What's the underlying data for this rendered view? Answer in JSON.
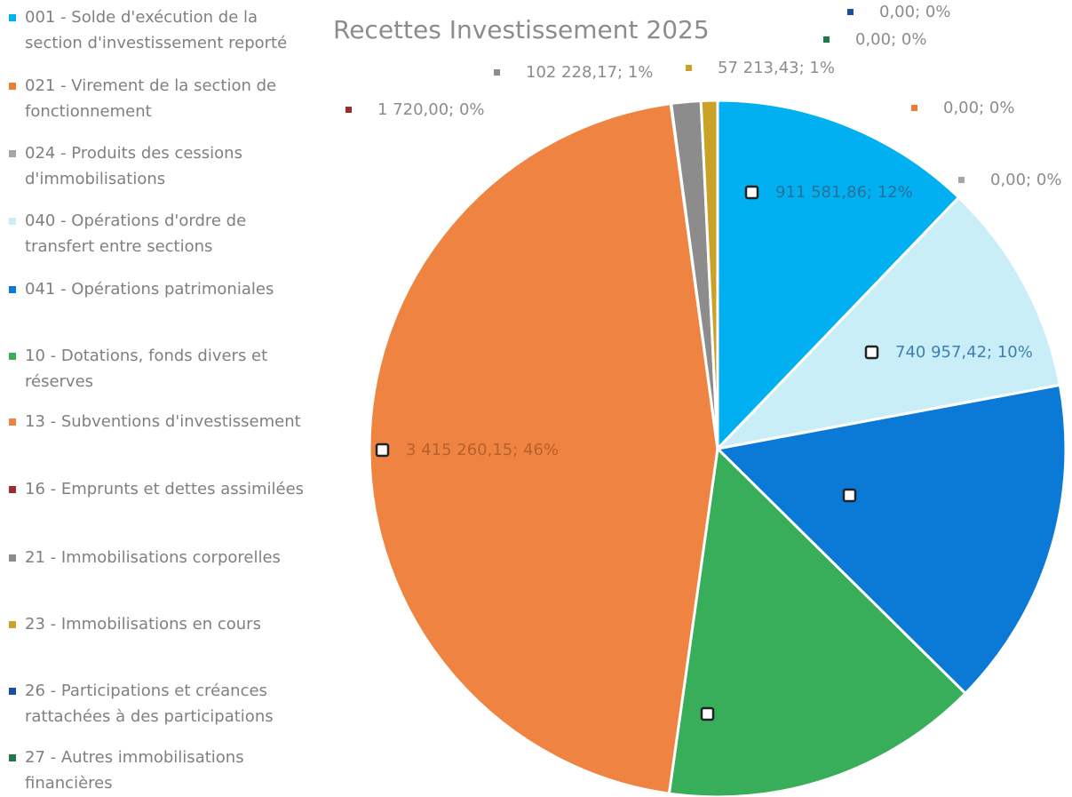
{
  "chart_data": {
    "type": "pie",
    "title": "Recettes Investissement 2025",
    "categories": [
      "001 - Solde d'exécution de la section d'investissement reporté",
      "021 - Virement de la section de fonctionnement",
      "024 - Produits des cessions d'immobilisations",
      "040 - Opérations d'ordre de transfert entre sections",
      "041 - Opérations patrimoniales",
      "10 - Dotations, fonds divers et réserves",
      "13 - Subventions d'investissement",
      "16 - Emprunts et dettes assimilées",
      "21 - Immobilisations corporelles",
      "23 - Immobilisations en cours",
      "26 - Participations et créances rattachées à des participations",
      "27 - Autres immobilisations financières"
    ],
    "values": [
      911581.86,
      0,
      0,
      740957.42,
      1147000,
      1110000,
      3415260.15,
      1720,
      102228.17,
      57213.43,
      0,
      0
    ],
    "value_labels": [
      "911 581,86; 12%",
      "0,00; 0%",
      "0,00; 0%",
      "740 957,42; 10%",
      null,
      null,
      "3 415 260,15; 46%",
      "1 720,00; 0%",
      "102 228,17; 1%",
      "57 213,43; 1%",
      "0,00; 0%",
      "0,00; 0%"
    ],
    "colors": [
      "#00b0f0",
      "#ed7d31",
      "#a5a5a5",
      "#c9eef8",
      "#0b7ad6",
      "#38ad5a",
      "#ef8442",
      "#9b2d2d",
      "#8c8c8c",
      "#c9a227",
      "#1f4e9c",
      "#1e7a45"
    ],
    "legend": "left"
  }
}
